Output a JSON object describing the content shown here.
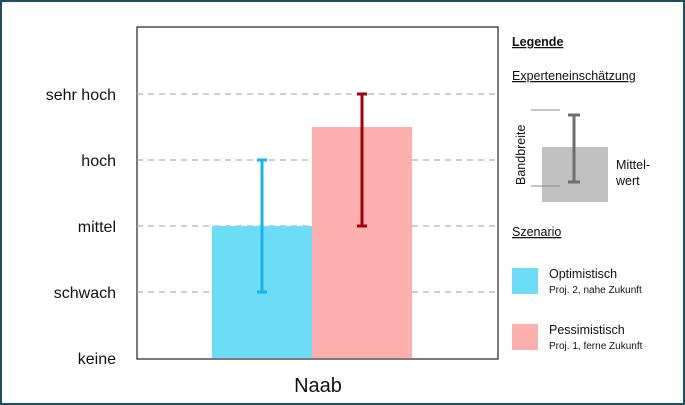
{
  "chart_data": {
    "type": "bar",
    "categories": [
      "Naab"
    ],
    "y_scale": [
      "keine",
      "schwach",
      "mittel",
      "hoch",
      "sehr hoch"
    ],
    "ylim": [
      0,
      4
    ],
    "grid": "horizontal-dashed",
    "series": [
      {
        "name": "Optimistisch",
        "values": [
          2.0
        ],
        "range_low": [
          1.0
        ],
        "range_high": [
          3.0
        ],
        "color": "#6ddcf7",
        "error_color": "#18b4e8"
      },
      {
        "name": "Pessimistisch",
        "values": [
          3.5
        ],
        "range_low": [
          2.0
        ],
        "range_high": [
          4.0
        ],
        "color": "#fbb0ae",
        "error_color": "#a3000b"
      }
    ],
    "legend": {
      "title": "Legende",
      "estimate_title": "Experteneinschätzung",
      "range_label": "Bandbreite",
      "mean_label_1": "Mittel-",
      "mean_label_2": "wert",
      "scenario_title": "Szenario",
      "optimistic_label": "Optimistisch",
      "optimistic_sub": "Proj. 2, nahe Zukunft",
      "pessimistic_label": "Pessimistisch",
      "pessimistic_sub": "Proj. 1, ferne Zukunft",
      "placement": "right"
    }
  }
}
